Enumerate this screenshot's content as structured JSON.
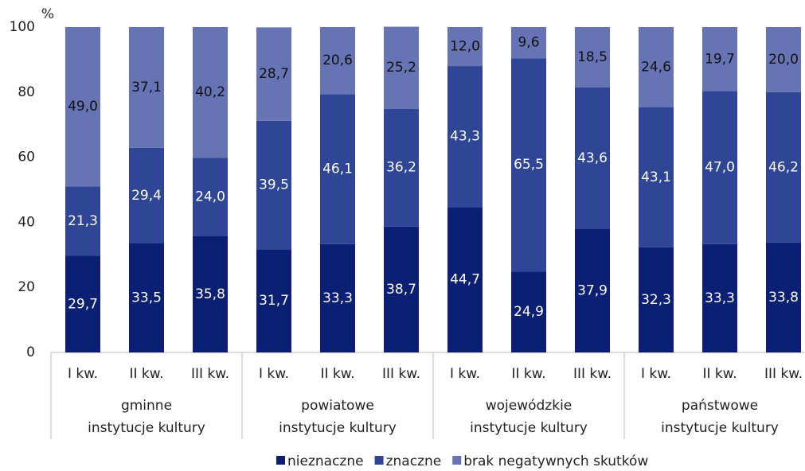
{
  "chart_data": {
    "type": "stacked_bar",
    "y_unit": "%",
    "categories": [
      "I kw.",
      "II kw.",
      "III kw.",
      "I kw.",
      "II kw.",
      "III kw.",
      "I kw.",
      "II kw.",
      "III kw.",
      "I kw.",
      "II kw.",
      "III kw."
    ],
    "groups": [
      [
        "gminne",
        "instytucje kultury"
      ],
      [
        "powiatowe",
        "instytucje kultury"
      ],
      [
        "wojewódzkie",
        "instytucje kultury"
      ],
      [
        "państwowe",
        "instytucje kultury"
      ]
    ],
    "series": [
      {
        "name": "nieznaczne",
        "color": "#0b1f74",
        "label_color": "#ffffff",
        "values": [
          29.7,
          33.5,
          35.8,
          31.7,
          33.3,
          38.7,
          44.7,
          24.9,
          37.9,
          32.3,
          33.3,
          33.8
        ],
        "value_labels": [
          "29,7",
          "33,5",
          "35,8",
          "31,7",
          "33,3",
          "38,7",
          "44,7",
          "24,9",
          "37,9",
          "32,3",
          "33,3",
          "33,8"
        ]
      },
      {
        "name": "znaczne",
        "color": "#2f4595",
        "label_color": "#ffffff",
        "values": [
          21.3,
          29.4,
          24.0,
          39.5,
          46.1,
          36.2,
          43.3,
          65.5,
          43.6,
          43.1,
          47.0,
          46.2
        ],
        "value_labels": [
          "21,3",
          "29,4",
          "24,0",
          "39,5",
          "46,1",
          "36,2",
          "43,3",
          "65,5",
          "43,6",
          "43,1",
          "47,0",
          "46,2"
        ]
      },
      {
        "name": "brak negatywnych skutków",
        "color": "#6673b5",
        "label_color": "#111111",
        "values": [
          49.0,
          37.1,
          40.2,
          28.7,
          20.6,
          25.2,
          12.0,
          9.6,
          18.5,
          24.6,
          19.7,
          20.0
        ],
        "value_labels": [
          "49,0",
          "37,1",
          "40,2",
          "28,7",
          "20,6",
          "25,2",
          "12,0",
          "9,6",
          "18,5",
          "24,6",
          "19,7",
          "20,0"
        ]
      }
    ],
    "ylim": [
      0,
      100
    ],
    "yticks": [
      0,
      20,
      40,
      60,
      80,
      100
    ],
    "grid": false,
    "legend": "bottom"
  }
}
